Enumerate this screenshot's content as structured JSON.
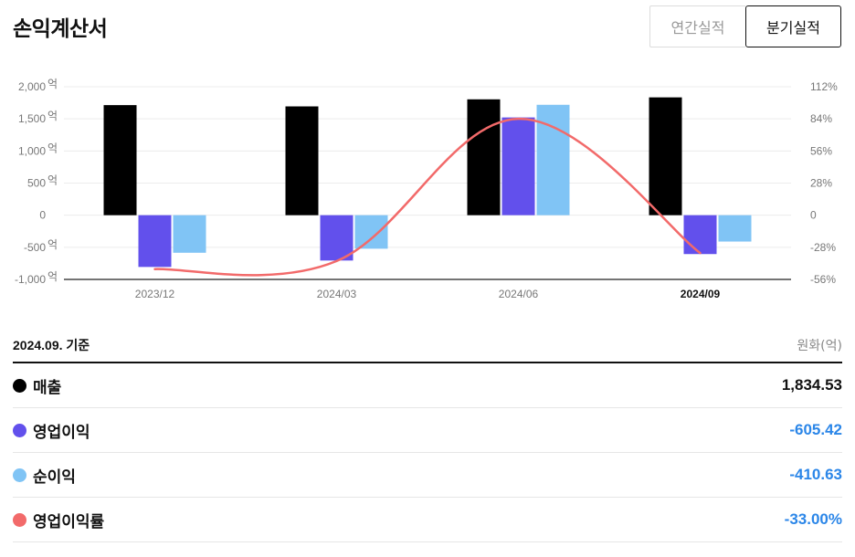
{
  "header": {
    "title": "손익계산서",
    "tabs": [
      {
        "label": "연간실적",
        "selected": false
      },
      {
        "label": "분기실적",
        "selected": true
      }
    ]
  },
  "chart_data": {
    "type": "bar",
    "categories": [
      "2023/12",
      "2024/03",
      "2024/06",
      "2024/09"
    ],
    "active_category": "2024/09",
    "series": [
      {
        "name": "매출",
        "kind": "bar",
        "axis": "left",
        "color": "#000000",
        "values": [
          1714,
          1694,
          1804,
          1834.53
        ]
      },
      {
        "name": "영업이익",
        "kind": "bar",
        "axis": "left",
        "color": "#6250ec",
        "values": [
          -806,
          -706,
          1522,
          -605.42
        ]
      },
      {
        "name": "순이익",
        "kind": "bar",
        "axis": "left",
        "color": "#80c4f5",
        "values": [
          -585,
          -522,
          1719,
          -410.63
        ]
      },
      {
        "name": "영업이익률",
        "kind": "line",
        "axis": "right",
        "color": "#f26a6a",
        "values": [
          -47,
          -40,
          84,
          -33.0
        ]
      }
    ],
    "left_axis": {
      "ylim": [
        -1000,
        2000
      ],
      "ticks": [
        2000,
        1500,
        1000,
        500,
        0,
        -500,
        -1000
      ],
      "tick_labels": [
        "2,000",
        "1,500",
        "1,000",
        "500",
        "0",
        "-500",
        "-1,000"
      ],
      "unit_suffix": "억"
    },
    "right_axis": {
      "ylim": [
        -56,
        112
      ],
      "ticks": [
        112,
        84,
        56,
        28,
        0,
        -28,
        -56
      ],
      "tick_labels": [
        "112%",
        "84%",
        "56%",
        "28%",
        "0",
        "-28%",
        "-56%"
      ]
    },
    "grid": true
  },
  "summary": {
    "basis": "2024.09. 기준",
    "unit": "원화(억)",
    "rows": [
      {
        "label": "매출",
        "value": "1,834.53",
        "color": "#000000",
        "negative": false
      },
      {
        "label": "영업이익",
        "value": "-605.42",
        "color": "#6250ec",
        "negative": true
      },
      {
        "label": "순이익",
        "value": "-410.63",
        "color": "#80c4f5",
        "negative": true
      },
      {
        "label": "영업이익률",
        "value": "-33.00%",
        "color": "#f26a6a",
        "negative": true
      }
    ]
  }
}
